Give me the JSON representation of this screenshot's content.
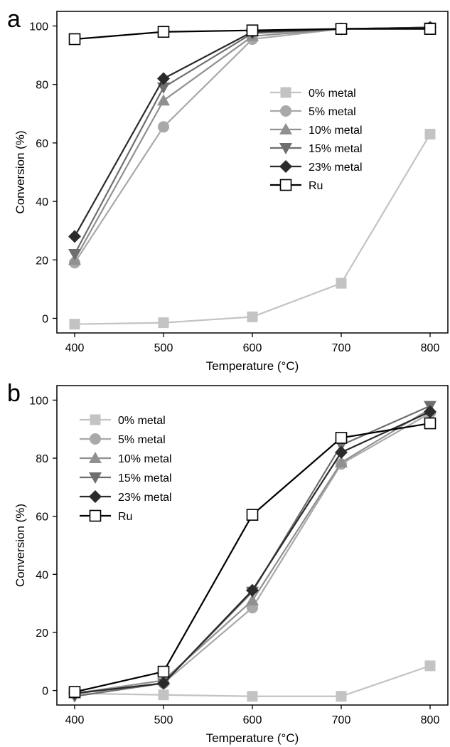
{
  "chart_data": [
    {
      "panel_label": "a",
      "type": "line",
      "xlabel": "Temperature (°C)",
      "ylabel": "Conversion (%)",
      "x": [
        400,
        500,
        600,
        700,
        800
      ],
      "xlim": [
        380,
        820
      ],
      "ylim": [
        -5,
        105
      ],
      "xticks": [
        400,
        500,
        600,
        700,
        800
      ],
      "yticks": [
        0,
        20,
        40,
        60,
        80,
        100
      ],
      "legend_position": "right",
      "grid": false,
      "series": [
        {
          "name": "0% metal",
          "values": [
            -2,
            -1.5,
            0.5,
            12,
            63
          ],
          "color": "#c3c3c3",
          "marker": "square"
        },
        {
          "name": "5% metal",
          "values": [
            19,
            65.5,
            95.5,
            99,
            99.5
          ],
          "color": "#a9a9a9",
          "marker": "circle"
        },
        {
          "name": "10% metal",
          "values": [
            20,
            74.5,
            96.5,
            99,
            99.5
          ],
          "color": "#909090",
          "marker": "triangle-up"
        },
        {
          "name": "15% metal",
          "values": [
            22,
            79,
            97.5,
            99,
            99.5
          ],
          "color": "#6e6e6e",
          "marker": "triangle-down"
        },
        {
          "name": "23% metal",
          "values": [
            28,
            82,
            98,
            99,
            99.5
          ],
          "color": "#2b2b2b",
          "marker": "diamond"
        },
        {
          "name": "Ru",
          "values": [
            95.5,
            98,
            98.5,
            99,
            99
          ],
          "color": "#000000",
          "marker": "open-square"
        }
      ]
    },
    {
      "panel_label": "b",
      "type": "line",
      "xlabel": "Temperature (°C)",
      "ylabel": "Conversion (%)",
      "x": [
        400,
        500,
        600,
        700,
        800
      ],
      "xlim": [
        380,
        820
      ],
      "ylim": [
        -5,
        105
      ],
      "xticks": [
        400,
        500,
        600,
        700,
        800
      ],
      "yticks": [
        0,
        20,
        40,
        60,
        80,
        100
      ],
      "legend_position": "top-left",
      "grid": false,
      "series": [
        {
          "name": "0% metal",
          "values": [
            -1,
            -1.5,
            -2,
            -2,
            8.5
          ],
          "color": "#c3c3c3",
          "marker": "square"
        },
        {
          "name": "5% metal",
          "values": [
            -1,
            2.5,
            28.5,
            78,
            95.5
          ],
          "color": "#a9a9a9",
          "marker": "circle"
        },
        {
          "name": "10% metal",
          "values": [
            -1,
            3.5,
            31,
            78.5,
            97
          ],
          "color": "#909090",
          "marker": "triangle-up"
        },
        {
          "name": "15% metal",
          "values": [
            -2,
            2.5,
            34,
            84.5,
            98
          ],
          "color": "#6e6e6e",
          "marker": "triangle-down"
        },
        {
          "name": "23% metal",
          "values": [
            -1,
            2.5,
            34.5,
            82,
            96
          ],
          "color": "#2b2b2b",
          "marker": "diamond"
        },
        {
          "name": "Ru",
          "values": [
            -0.5,
            6.5,
            60.5,
            87,
            92
          ],
          "color": "#000000",
          "marker": "open-square"
        }
      ]
    }
  ]
}
